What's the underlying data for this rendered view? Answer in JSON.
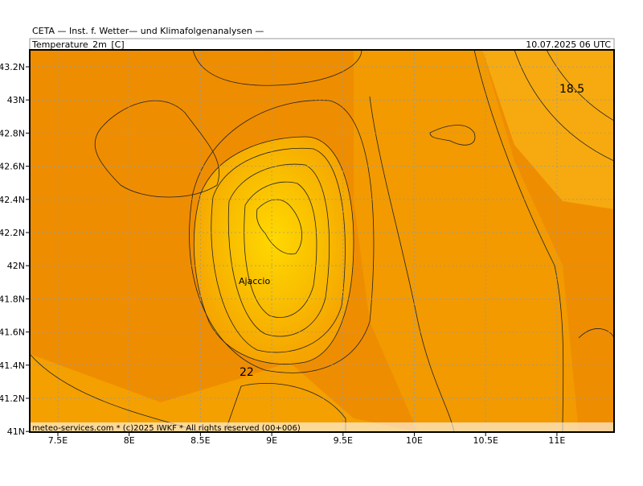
{
  "header": {
    "title": "CETA — Inst. f. Wetter— und Klimafolgenanalysen —",
    "field": "Temperature_2m_[C]",
    "date": "10.07.2025 06 UTC"
  },
  "axes": {
    "x_labels": [
      "7.5E",
      "8E",
      "8.5E",
      "9E",
      "9.5E",
      "10E",
      "10.5E",
      "11E"
    ],
    "y_labels": [
      "43.2N",
      "43N",
      "42.8N",
      "42.6N",
      "42.4N",
      "42.2N",
      "42N",
      "41.8N",
      "41.6N",
      "41.4N",
      "41.2N",
      "41N"
    ]
  },
  "map": {
    "contour_labels": [
      "18.5",
      "22"
    ],
    "place": "Ajaccio"
  },
  "footer": "meteo-services.com * (c)2025 IWKF * All rights reserved (00+006)"
}
